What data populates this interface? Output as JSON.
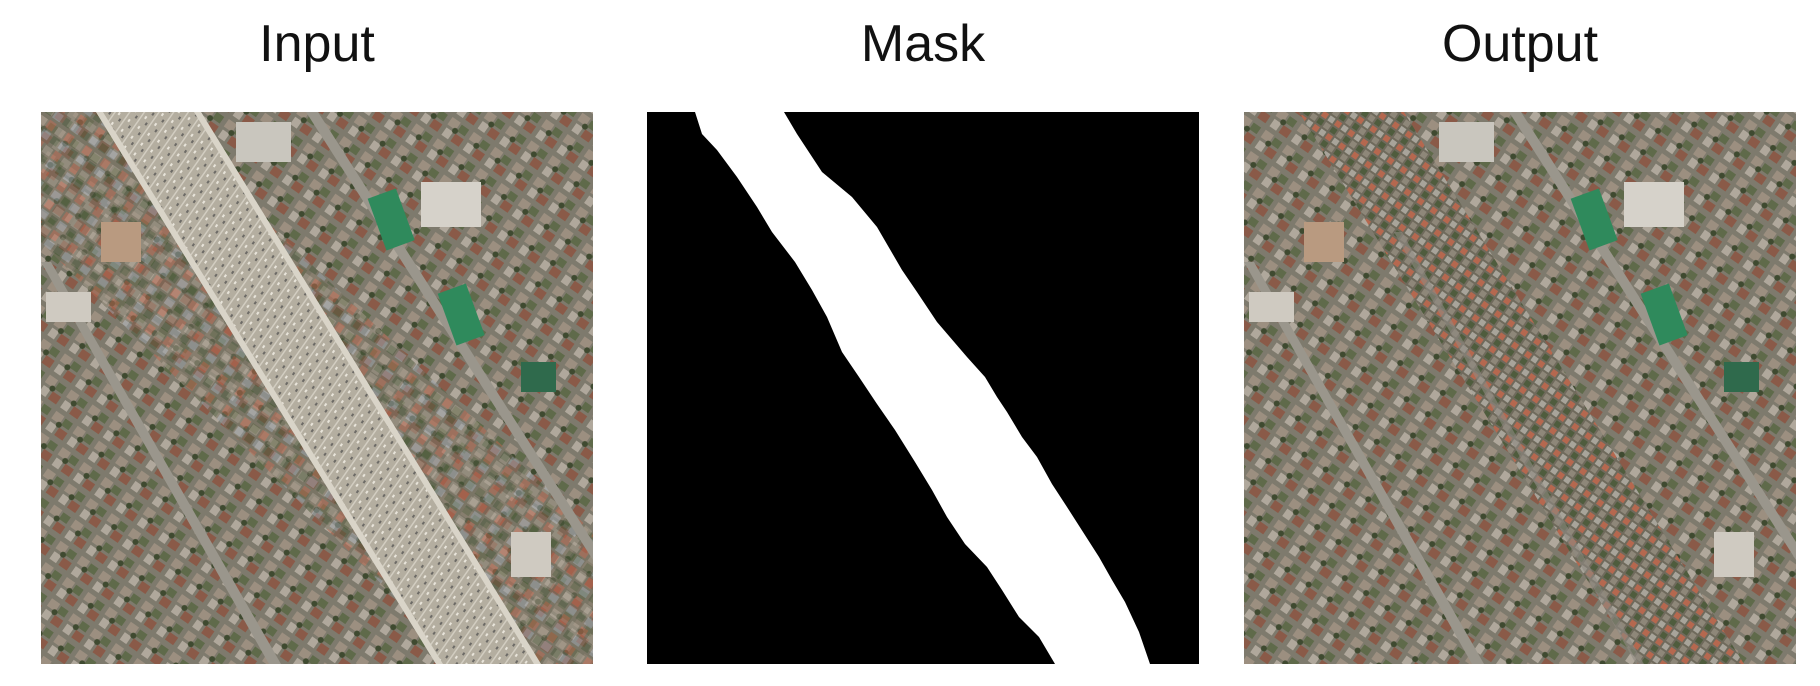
{
  "panels": [
    {
      "title": "Input"
    },
    {
      "title": "Mask"
    },
    {
      "title": "Output"
    }
  ],
  "colors": {
    "background": "#ffffff",
    "mask_background": "#000000",
    "mask_foreground": "#ffffff",
    "urban_base": "#8d877c",
    "highway": "#b4aea0"
  }
}
